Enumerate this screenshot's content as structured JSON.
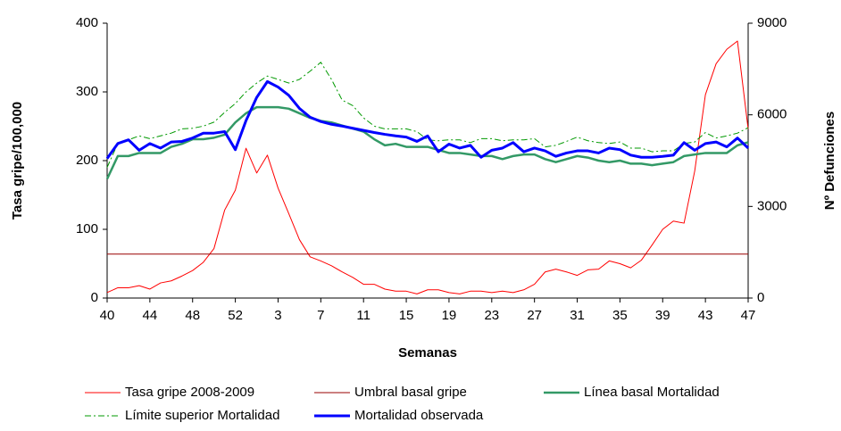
{
  "chart_data": {
    "type": "line",
    "ylabel": "Tasa gripe/100,000",
    "y2label": "Nº Defunciones",
    "xlabel": "Semanas",
    "categories": [
      40,
      null,
      null,
      null,
      44,
      null,
      null,
      null,
      48,
      null,
      null,
      null,
      52,
      null,
      null,
      null,
      3,
      null,
      null,
      null,
      7,
      null,
      null,
      null,
      11,
      null,
      null,
      null,
      15,
      null,
      null,
      null,
      19,
      null,
      null,
      null,
      23,
      null,
      null,
      null,
      27,
      null,
      null,
      null,
      31,
      null,
      null,
      null,
      35,
      null,
      null,
      null,
      39,
      null,
      null,
      null,
      43,
      null,
      null,
      null,
      47
    ],
    "ylim": [
      0,
      400
    ],
    "yticks": [
      0,
      100,
      200,
      300,
      400
    ],
    "y2lim": [
      0,
      9000
    ],
    "y2ticks": [
      0,
      3000,
      6000,
      9000
    ],
    "series": [
      {
        "name": "Tasa gripe 2008-2009",
        "color": "#ff0000",
        "linewidth": 1,
        "style": "solid",
        "axis": "y",
        "values": [
          8,
          15,
          15,
          18,
          13,
          22,
          25,
          32,
          40,
          52,
          72,
          128,
          157,
          218,
          182,
          208,
          160,
          123,
          85,
          60,
          54,
          47,
          38,
          30,
          20,
          20,
          13,
          10,
          10,
          6,
          12,
          12,
          8,
          6,
          10,
          10,
          8,
          10,
          8,
          12,
          20,
          38,
          42,
          38,
          33,
          41,
          42,
          54,
          50,
          44,
          55,
          77,
          100,
          112,
          109,
          185,
          296,
          341,
          362,
          374,
          246
        ]
      },
      {
        "name": "Umbral basal gripe",
        "color": "#990000",
        "linewidth": 1,
        "style": "solid",
        "axis": "y",
        "values": [
          64,
          64,
          64,
          64,
          64,
          64,
          64,
          64,
          64,
          64,
          64,
          64,
          64,
          64,
          64,
          64,
          64,
          64,
          64,
          64,
          64,
          64,
          64,
          64,
          64,
          64,
          64,
          64,
          64,
          64,
          64,
          64,
          64,
          64,
          64,
          64,
          64,
          64,
          64,
          64,
          64,
          64,
          64,
          64,
          64,
          64,
          64,
          64,
          64,
          64,
          64,
          64,
          64,
          64,
          64,
          64,
          64,
          64,
          64,
          64,
          64
        ]
      },
      {
        "name": "Línea basal Mortalidad",
        "color": "#339966",
        "linewidth": 2.5,
        "style": "solid",
        "axis": "y2",
        "values": [
          3900,
          4650,
          4650,
          4750,
          4750,
          4750,
          4950,
          5050,
          5200,
          5200,
          5250,
          5350,
          5750,
          6050,
          6250,
          6250,
          6250,
          6200,
          6050,
          5900,
          5800,
          5750,
          5650,
          5550,
          5450,
          5200,
          5000,
          5050,
          4950,
          4950,
          4950,
          4850,
          4750,
          4750,
          4700,
          4650,
          4650,
          4550,
          4650,
          4700,
          4700,
          4550,
          4450,
          4550,
          4650,
          4600,
          4500,
          4450,
          4500,
          4400,
          4400,
          4350,
          4400,
          4450,
          4650,
          4700,
          4750,
          4750,
          4750,
          5000,
          5100
        ]
      },
      {
        "name": "Límite superior Mortalidad",
        "color": "#009900",
        "linewidth": 1,
        "style": "dashdot",
        "axis": "y2",
        "values": [
          4280,
          5060,
          5180,
          5310,
          5220,
          5310,
          5400,
          5540,
          5560,
          5630,
          5760,
          6080,
          6370,
          6750,
          7040,
          7270,
          7160,
          7040,
          7160,
          7430,
          7720,
          7160,
          6480,
          6300,
          5900,
          5630,
          5540,
          5540,
          5540,
          5450,
          5180,
          5150,
          5180,
          5180,
          5090,
          5220,
          5220,
          5150,
          5180,
          5180,
          5220,
          4950,
          5000,
          5130,
          5270,
          5150,
          5090,
          5060,
          5110,
          4910,
          4910,
          4790,
          4820,
          4820,
          5060,
          5110,
          5420,
          5240,
          5310,
          5400,
          5580
        ]
      },
      {
        "name": "Mortalidad observada",
        "color": "#0000ff",
        "linewidth": 3,
        "style": "solid",
        "axis": "y2",
        "values": [
          4570,
          5060,
          5180,
          4840,
          5060,
          4910,
          5110,
          5130,
          5240,
          5400,
          5400,
          5450,
          4860,
          5810,
          6570,
          7090,
          6910,
          6640,
          6210,
          5920,
          5780,
          5690,
          5630,
          5560,
          5490,
          5420,
          5360,
          5310,
          5270,
          5130,
          5310,
          4790,
          5040,
          4910,
          5000,
          4610,
          4840,
          4910,
          5090,
          4790,
          4910,
          4820,
          4640,
          4750,
          4820,
          4820,
          4750,
          4910,
          4860,
          4680,
          4610,
          4610,
          4640,
          4680,
          5090,
          4840,
          5060,
          5110,
          4950,
          5240,
          4910
        ]
      }
    ]
  }
}
